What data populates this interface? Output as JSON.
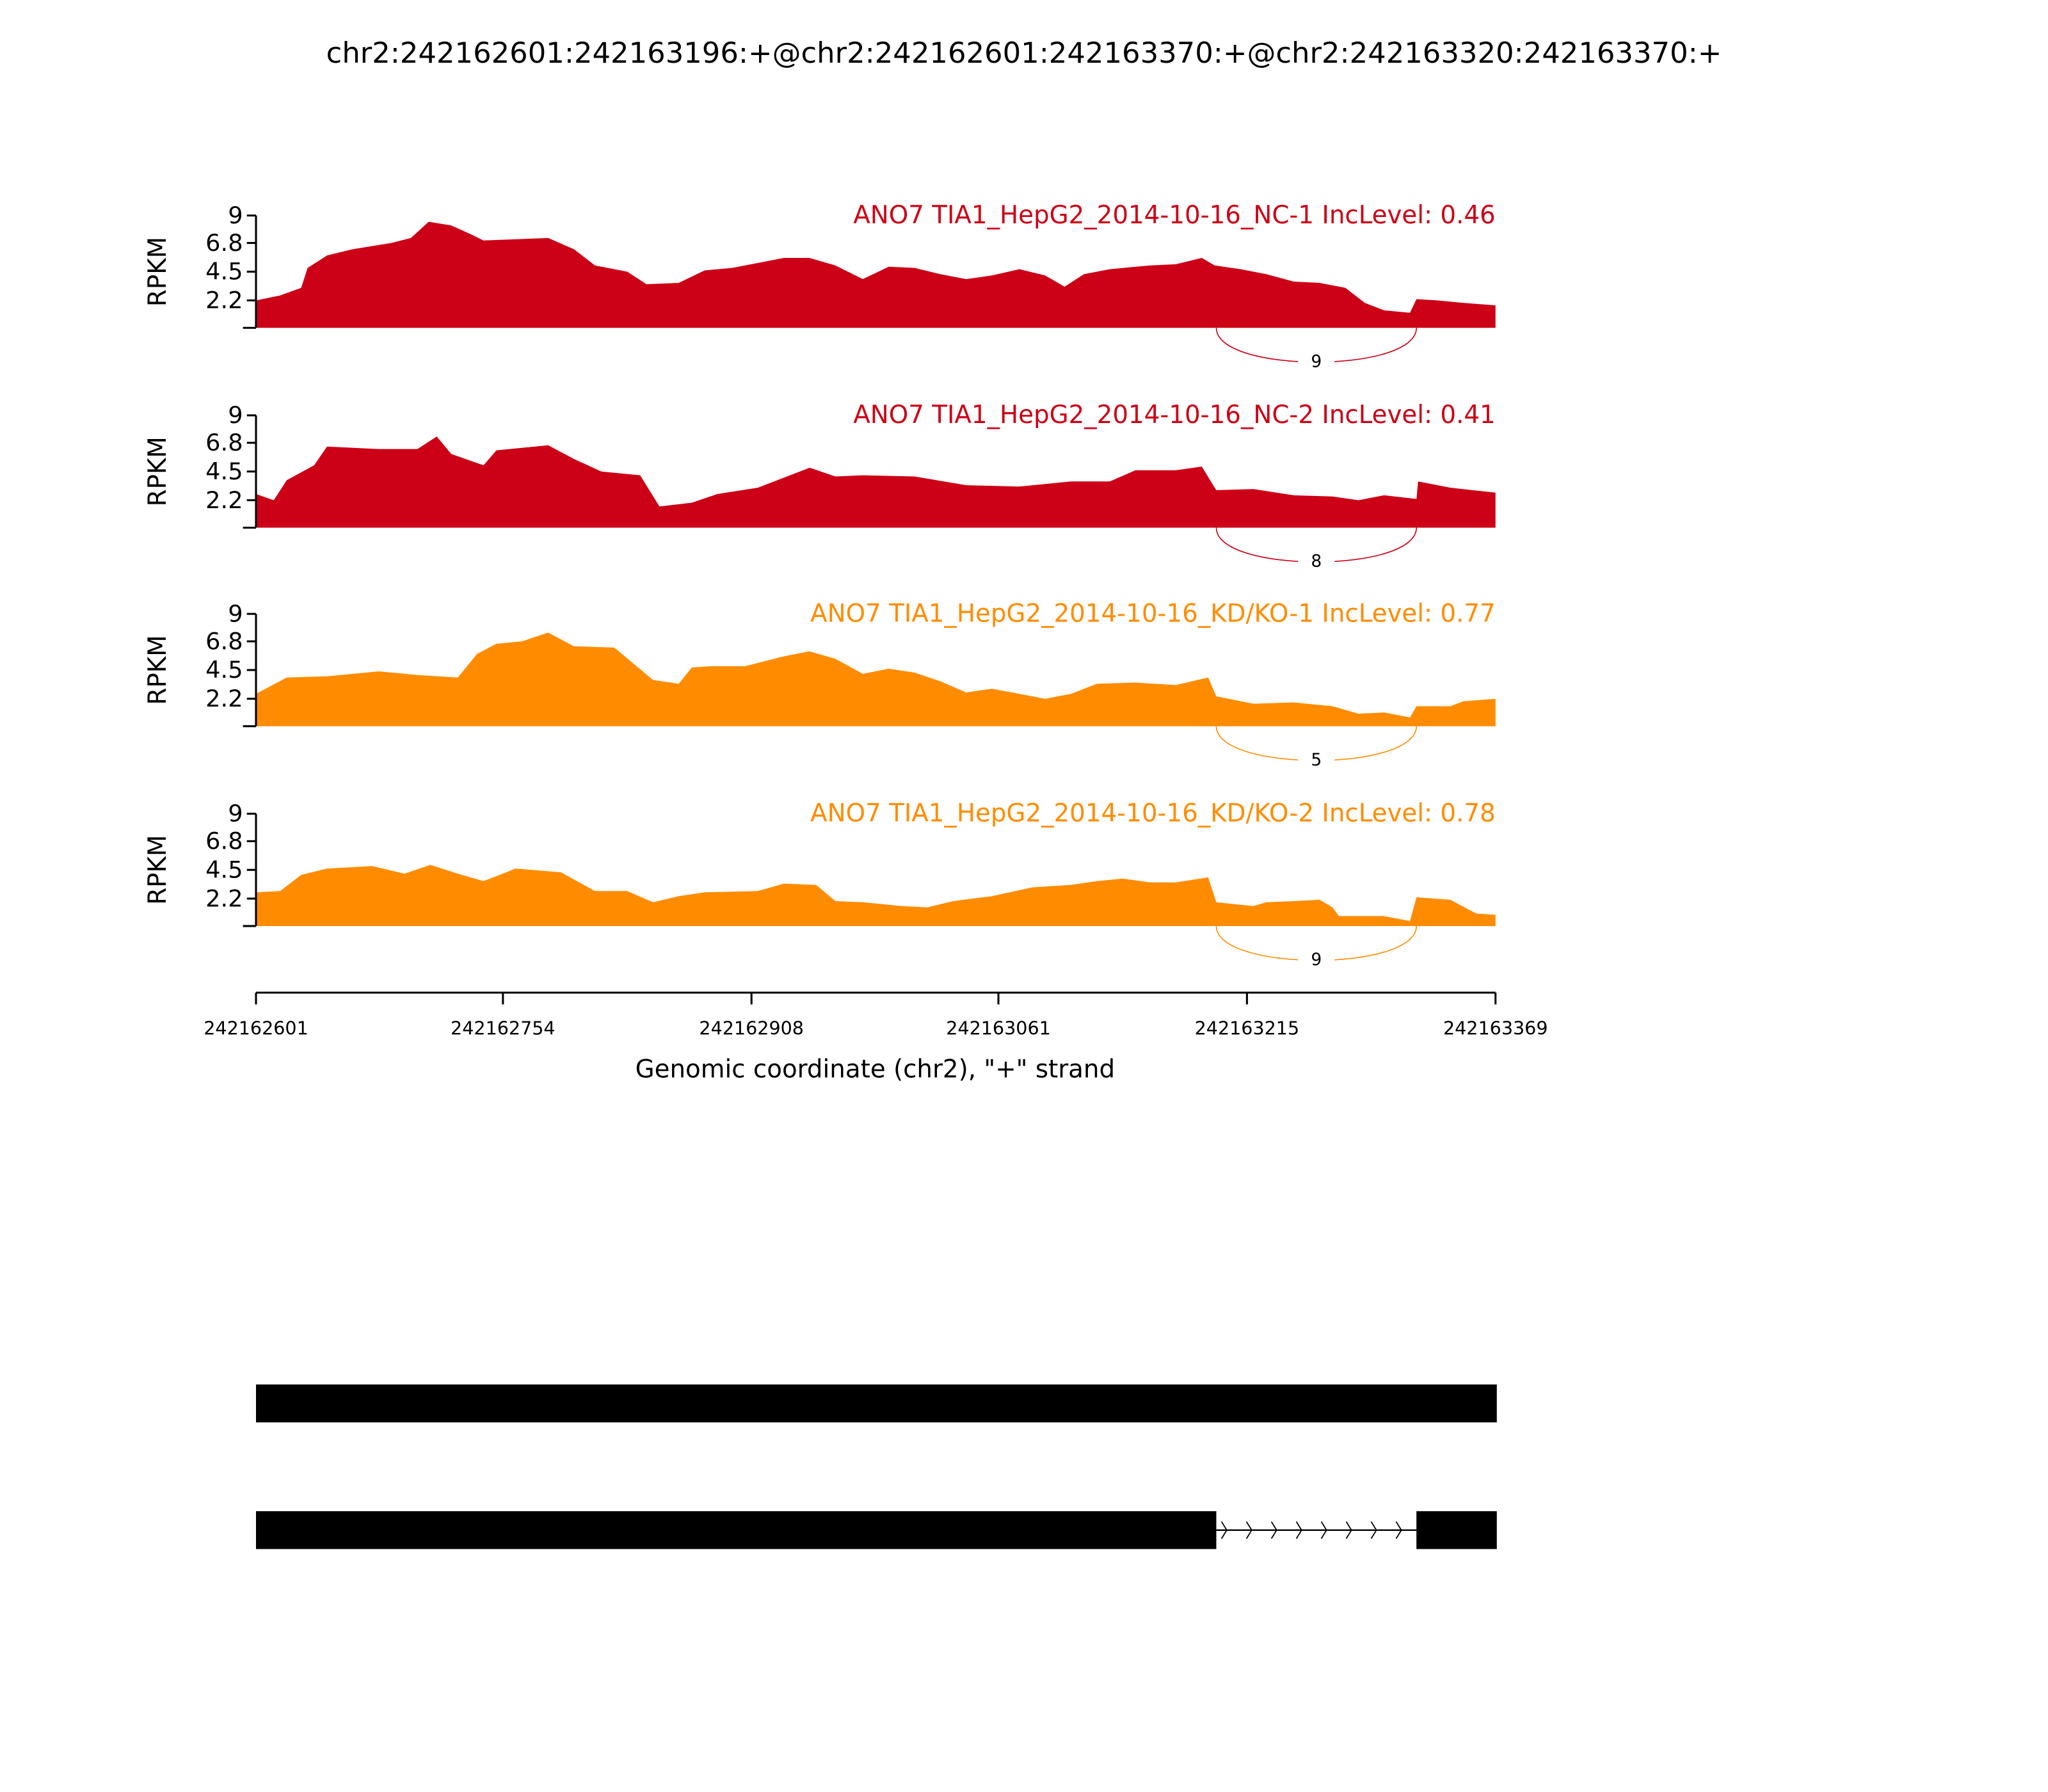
{
  "chart_data": {
    "type": "area",
    "title": "chr2:242162601:242163196:+@chr2:242162601:242163370:+@chr2:242163320:242163370:+",
    "xlabel": "Genomic coordinate (chr2), \"+\" strand",
    "ylabel": "RPKM",
    "xlim": [
      242162601,
      242163369
    ],
    "ylim": [
      0,
      9
    ],
    "yticks": [
      "9",
      "6.8",
      "4.5",
      "2.2"
    ],
    "ytick_values": [
      9,
      6.8,
      4.5,
      2.2
    ],
    "xticks": [
      "242162601",
      "242162754",
      "242162908",
      "242163061",
      "242163215",
      "242163369"
    ],
    "x_offset_note": "coverage positions are offsets from 242162601",
    "junction": {
      "start": 242163196,
      "end": 242163320
    },
    "series": [
      {
        "name": "ANO7 TIA1_HepG2_2014-10-16_NC-1 IncLevel: 0.46",
        "color": "#cc0016",
        "junction_count": "9",
        "points": [
          [
            0,
            2.2
          ],
          [
            15,
            2.6
          ],
          [
            28,
            3.2
          ],
          [
            32,
            4.8
          ],
          [
            44,
            5.8
          ],
          [
            60,
            6.3
          ],
          [
            84,
            6.8
          ],
          [
            96,
            7.2
          ],
          [
            107,
            8.5
          ],
          [
            121,
            8.2
          ],
          [
            133,
            7.5
          ],
          [
            141,
            7.0
          ],
          [
            181,
            7.2
          ],
          [
            197,
            6.3
          ],
          [
            210,
            5.0
          ],
          [
            230,
            4.5
          ],
          [
            242,
            3.5
          ],
          [
            262,
            3.6
          ],
          [
            278,
            4.6
          ],
          [
            295,
            4.8
          ],
          [
            311,
            5.2
          ],
          [
            327,
            5.6
          ],
          [
            343,
            5.6
          ],
          [
            359,
            5.0
          ],
          [
            376,
            3.9
          ],
          [
            392,
            4.9
          ],
          [
            408,
            4.8
          ],
          [
            424,
            4.3
          ],
          [
            440,
            3.9
          ],
          [
            456,
            4.2
          ],
          [
            473,
            4.7
          ],
          [
            489,
            4.2
          ],
          [
            501,
            3.3
          ],
          [
            513,
            4.3
          ],
          [
            529,
            4.7
          ],
          [
            554,
            5.0
          ],
          [
            570,
            5.1
          ],
          [
            586,
            5.6
          ],
          [
            594,
            5.0
          ],
          [
            610,
            4.7
          ],
          [
            626,
            4.3
          ],
          [
            643,
            3.7
          ],
          [
            659,
            3.6
          ],
          [
            675,
            3.2
          ],
          [
            687,
            2.0
          ],
          [
            699,
            1.4
          ],
          [
            715,
            1.2
          ],
          [
            719,
            2.3
          ],
          [
            732,
            2.2
          ],
          [
            748,
            2.0
          ],
          [
            768,
            1.8
          ]
        ]
      },
      {
        "name": "ANO7 TIA1_HepG2_2014-10-16_NC-2 IncLevel: 0.41",
        "color": "#cc0016",
        "junction_count": "8",
        "points": [
          [
            0,
            2.7
          ],
          [
            11,
            2.2
          ],
          [
            19,
            3.8
          ],
          [
            36,
            5.0
          ],
          [
            44,
            6.5
          ],
          [
            76,
            6.3
          ],
          [
            100,
            6.3
          ],
          [
            112,
            7.3
          ],
          [
            121,
            5.9
          ],
          [
            141,
            5.0
          ],
          [
            149,
            6.2
          ],
          [
            181,
            6.6
          ],
          [
            197,
            5.5
          ],
          [
            214,
            4.5
          ],
          [
            238,
            4.2
          ],
          [
            250,
            1.7
          ],
          [
            270,
            2.0
          ],
          [
            286,
            2.7
          ],
          [
            311,
            3.2
          ],
          [
            343,
            4.8
          ],
          [
            359,
            4.1
          ],
          [
            376,
            4.2
          ],
          [
            408,
            4.1
          ],
          [
            440,
            3.4
          ],
          [
            473,
            3.3
          ],
          [
            505,
            3.7
          ],
          [
            529,
            3.7
          ],
          [
            545,
            4.6
          ],
          [
            570,
            4.6
          ],
          [
            586,
            4.9
          ],
          [
            595,
            3.0
          ],
          [
            618,
            3.1
          ],
          [
            643,
            2.6
          ],
          [
            667,
            2.5
          ],
          [
            683,
            2.2
          ],
          [
            699,
            2.6
          ],
          [
            719,
            2.3
          ],
          [
            720,
            3.7
          ],
          [
            740,
            3.2
          ],
          [
            768,
            2.8
          ]
        ]
      },
      {
        "name": "ANO7 TIA1_HepG2_2014-10-16_KD/KO-1 IncLevel: 0.77",
        "color": "#ff8c00",
        "junction_count": "5",
        "points": [
          [
            0,
            2.6
          ],
          [
            19,
            3.9
          ],
          [
            44,
            4.0
          ],
          [
            76,
            4.4
          ],
          [
            100,
            4.1
          ],
          [
            125,
            3.9
          ],
          [
            137,
            5.8
          ],
          [
            149,
            6.6
          ],
          [
            165,
            6.8
          ],
          [
            181,
            7.5
          ],
          [
            197,
            6.4
          ],
          [
            222,
            6.3
          ],
          [
            234,
            5.0
          ],
          [
            246,
            3.7
          ],
          [
            262,
            3.4
          ],
          [
            270,
            4.7
          ],
          [
            282,
            4.8
          ],
          [
            303,
            4.8
          ],
          [
            327,
            5.6
          ],
          [
            343,
            6.0
          ],
          [
            359,
            5.4
          ],
          [
            376,
            4.2
          ],
          [
            392,
            4.6
          ],
          [
            408,
            4.3
          ],
          [
            424,
            3.6
          ],
          [
            440,
            2.7
          ],
          [
            456,
            3.0
          ],
          [
            473,
            2.6
          ],
          [
            489,
            2.2
          ],
          [
            505,
            2.6
          ],
          [
            521,
            3.4
          ],
          [
            545,
            3.5
          ],
          [
            570,
            3.3
          ],
          [
            590,
            3.9
          ],
          [
            595,
            2.4
          ],
          [
            618,
            1.8
          ],
          [
            643,
            1.9
          ],
          [
            667,
            1.6
          ],
          [
            683,
            1.0
          ],
          [
            699,
            1.1
          ],
          [
            715,
            0.7
          ],
          [
            719,
            1.6
          ],
          [
            740,
            1.6
          ],
          [
            748,
            2.0
          ],
          [
            768,
            2.2
          ]
        ]
      },
      {
        "name": "ANO7 TIA1_HepG2_2014-10-16_KD/KO-2 IncLevel: 0.78",
        "color": "#ff8c00",
        "junction_count": "9",
        "points": [
          [
            0,
            2.7
          ],
          [
            15,
            2.8
          ],
          [
            28,
            4.1
          ],
          [
            44,
            4.6
          ],
          [
            72,
            4.8
          ],
          [
            92,
            4.2
          ],
          [
            108,
            4.9
          ],
          [
            125,
            4.2
          ],
          [
            141,
            3.6
          ],
          [
            161,
            4.6
          ],
          [
            189,
            4.3
          ],
          [
            210,
            2.8
          ],
          [
            230,
            2.8
          ],
          [
            246,
            1.9
          ],
          [
            262,
            2.4
          ],
          [
            278,
            2.7
          ],
          [
            311,
            2.8
          ],
          [
            327,
            3.4
          ],
          [
            347,
            3.3
          ],
          [
            359,
            2.0
          ],
          [
            376,
            1.9
          ],
          [
            400,
            1.6
          ],
          [
            416,
            1.5
          ],
          [
            432,
            2.0
          ],
          [
            456,
            2.4
          ],
          [
            481,
            3.1
          ],
          [
            505,
            3.3
          ],
          [
            521,
            3.6
          ],
          [
            537,
            3.8
          ],
          [
            554,
            3.5
          ],
          [
            570,
            3.5
          ],
          [
            590,
            3.9
          ],
          [
            595,
            1.9
          ],
          [
            618,
            1.6
          ],
          [
            626,
            1.9
          ],
          [
            643,
            2.0
          ],
          [
            659,
            2.1
          ],
          [
            667,
            1.5
          ],
          [
            671,
            0.8
          ],
          [
            699,
            0.8
          ],
          [
            715,
            0.4
          ],
          [
            719,
            2.3
          ],
          [
            740,
            2.1
          ],
          [
            756,
            1.0
          ],
          [
            768,
            0.9
          ]
        ]
      }
    ],
    "gene_models": [
      {
        "exons": [
          [
            242162601,
            242163370
          ]
        ]
      },
      {
        "exons": [
          [
            242162601,
            242163196
          ],
          [
            242163320,
            242163370
          ]
        ]
      }
    ]
  }
}
